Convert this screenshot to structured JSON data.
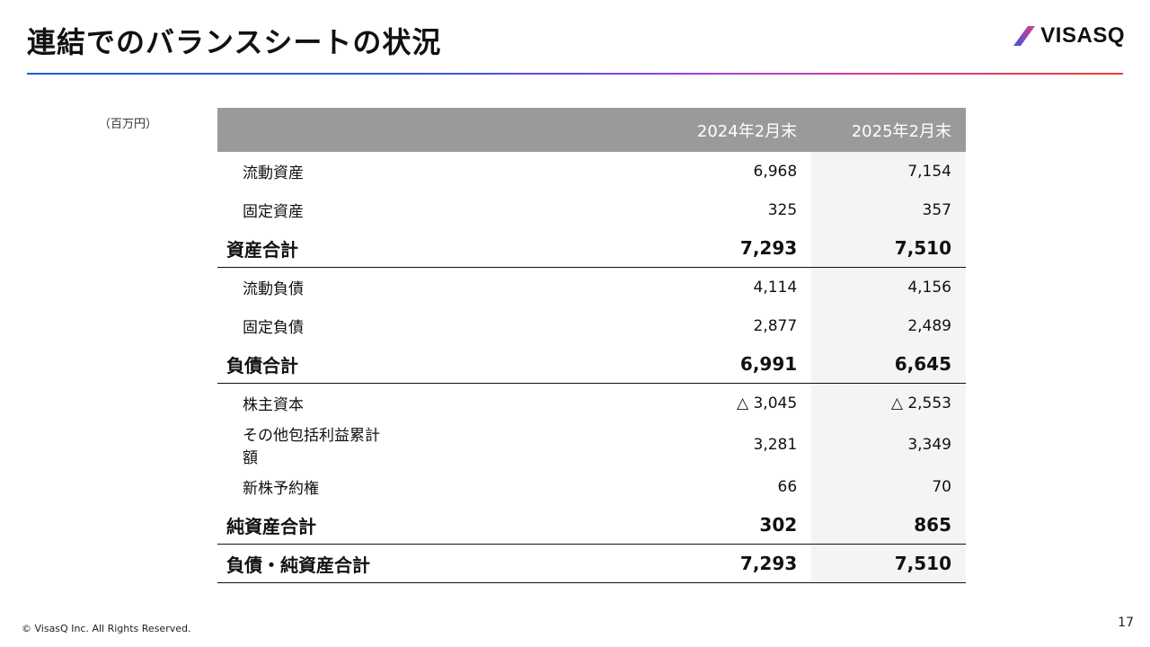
{
  "page": {
    "title": "連結でのバランスシートの状況",
    "unit_note": "（百万円）",
    "copyright": "© VisasQ Inc. All Rights Reserved.",
    "page_number": "17"
  },
  "logo": {
    "text": "VISASQ",
    "icon": "slash-mark-icon"
  },
  "colors": {
    "header_bg": "#9a9a9a",
    "current_col_bg": "#f4f4f4",
    "gradient": [
      "#1d5bd6",
      "#a23ee0",
      "#e8402e"
    ],
    "logo_slash": [
      "#3a56e0",
      "#e03a8a"
    ]
  },
  "table": {
    "headers": [
      "",
      "2024年2月末",
      "2025年2月末"
    ],
    "rows": [
      {
        "label": "流動資産",
        "a": "6,968",
        "b": "7,154",
        "type": "item"
      },
      {
        "label": "固定資産",
        "a": "325",
        "b": "357",
        "type": "item"
      },
      {
        "label": "資産合計",
        "a": "7,293",
        "b": "7,510",
        "type": "total"
      },
      {
        "label": "流動負債",
        "a": "4,114",
        "b": "4,156",
        "type": "item"
      },
      {
        "label": "固定負債",
        "a": "2,877",
        "b": "2,489",
        "type": "item"
      },
      {
        "label": "負債合計",
        "a": "6,991",
        "b": "6,645",
        "type": "total"
      },
      {
        "label": "株主資本",
        "a": "△ 3,045",
        "b": "△ 2,553",
        "type": "item"
      },
      {
        "label": "その他包括利益累計額",
        "a": "3,281",
        "b": "3,349",
        "type": "item"
      },
      {
        "label": "新株予約権",
        "a": "66",
        "b": "70",
        "type": "item"
      },
      {
        "label": "純資産合計",
        "a": "302",
        "b": "865",
        "type": "total"
      },
      {
        "label": "負債・純資産合計",
        "a": "7,293",
        "b": "7,510",
        "type": "total"
      }
    ]
  }
}
